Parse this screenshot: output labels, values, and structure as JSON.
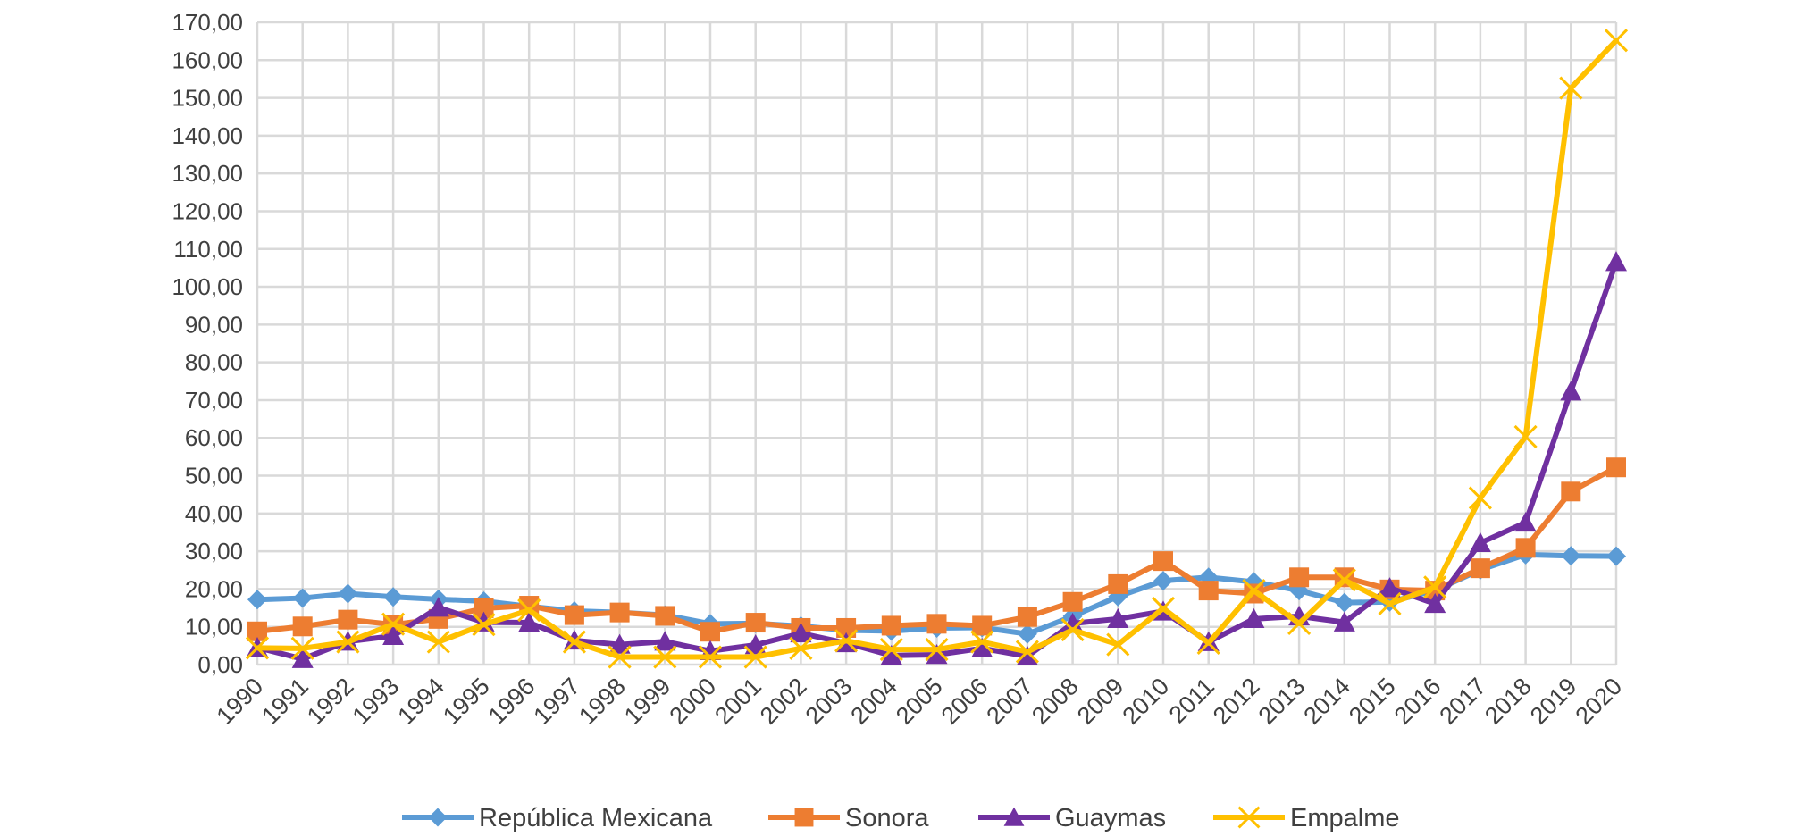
{
  "chart_data": {
    "type": "line",
    "title": "",
    "xlabel": "",
    "ylabel": "",
    "x": [
      "1990",
      "1991",
      "1992",
      "1993",
      "1994",
      "1995",
      "1996",
      "1997",
      "1998",
      "1999",
      "2000",
      "2001",
      "2002",
      "2003",
      "2004",
      "2005",
      "2006",
      "2007",
      "2008",
      "2009",
      "2010",
      "2011",
      "2012",
      "2013",
      "2014",
      "2015",
      "2016",
      "2017",
      "2018",
      "2019",
      "2020"
    ],
    "ylim": [
      0,
      170
    ],
    "y_step": 10,
    "y_ticks": [
      "0,00",
      "10,00",
      "20,00",
      "30,00",
      "40,00",
      "50,00",
      "60,00",
      "70,00",
      "80,00",
      "90,00",
      "100,00",
      "110,00",
      "120,00",
      "130,00",
      "140,00",
      "150,00",
      "160,00",
      "170,00"
    ],
    "grid": true,
    "legend_position": "bottom",
    "series": [
      {
        "name": "República Mexicana",
        "color": "#5B9BD5",
        "marker": "diamond",
        "values": [
          17.2,
          17.6,
          18.8,
          17.9,
          17.3,
          16.8,
          15.4,
          14.2,
          13.8,
          13.1,
          10.8,
          10.9,
          10.2,
          9.1,
          8.9,
          9.7,
          9.8,
          8.1,
          12.8,
          18.0,
          22.2,
          23.1,
          21.9,
          19.6,
          16.4,
          16.6,
          19.6,
          25.1,
          29.1,
          28.8,
          28.7
        ]
      },
      {
        "name": "Sonora",
        "color": "#ED7D31",
        "marker": "square",
        "values": [
          8.8,
          10.1,
          11.9,
          10.6,
          12.1,
          14.9,
          15.6,
          13.1,
          13.8,
          12.9,
          8.7,
          11.1,
          9.7,
          9.7,
          10.3,
          10.8,
          10.3,
          12.6,
          16.6,
          21.3,
          27.4,
          19.6,
          18.8,
          23.1,
          23.1,
          19.9,
          19.6,
          25.5,
          30.9,
          45.8,
          52.2
        ]
      },
      {
        "name": "Guaymas",
        "color": "#7030A0",
        "marker": "triangle",
        "values": [
          4.5,
          1.5,
          6.1,
          7.6,
          15.1,
          11.2,
          11.1,
          6.4,
          5.3,
          6.1,
          3.6,
          5.2,
          8.3,
          5.7,
          2.4,
          2.6,
          4.3,
          2.2,
          10.9,
          12.1,
          14.1,
          6.0,
          12.1,
          12.8,
          11.2,
          20.3,
          16.1,
          32.2,
          37.6,
          72.3,
          106.6
        ]
      },
      {
        "name": "Empalme",
        "color": "#FFC000",
        "marker": "cross",
        "values": [
          4.4,
          4.3,
          6.0,
          10.7,
          6.0,
          10.6,
          14.4,
          6.0,
          2.0,
          2.0,
          2.0,
          2.0,
          4.3,
          6.3,
          4.0,
          4.0,
          6.0,
          3.4,
          9.2,
          5.3,
          14.9,
          5.7,
          19.6,
          10.9,
          22.4,
          16.1,
          20.5,
          44.1,
          60.3,
          152.6,
          165.2
        ]
      }
    ]
  }
}
